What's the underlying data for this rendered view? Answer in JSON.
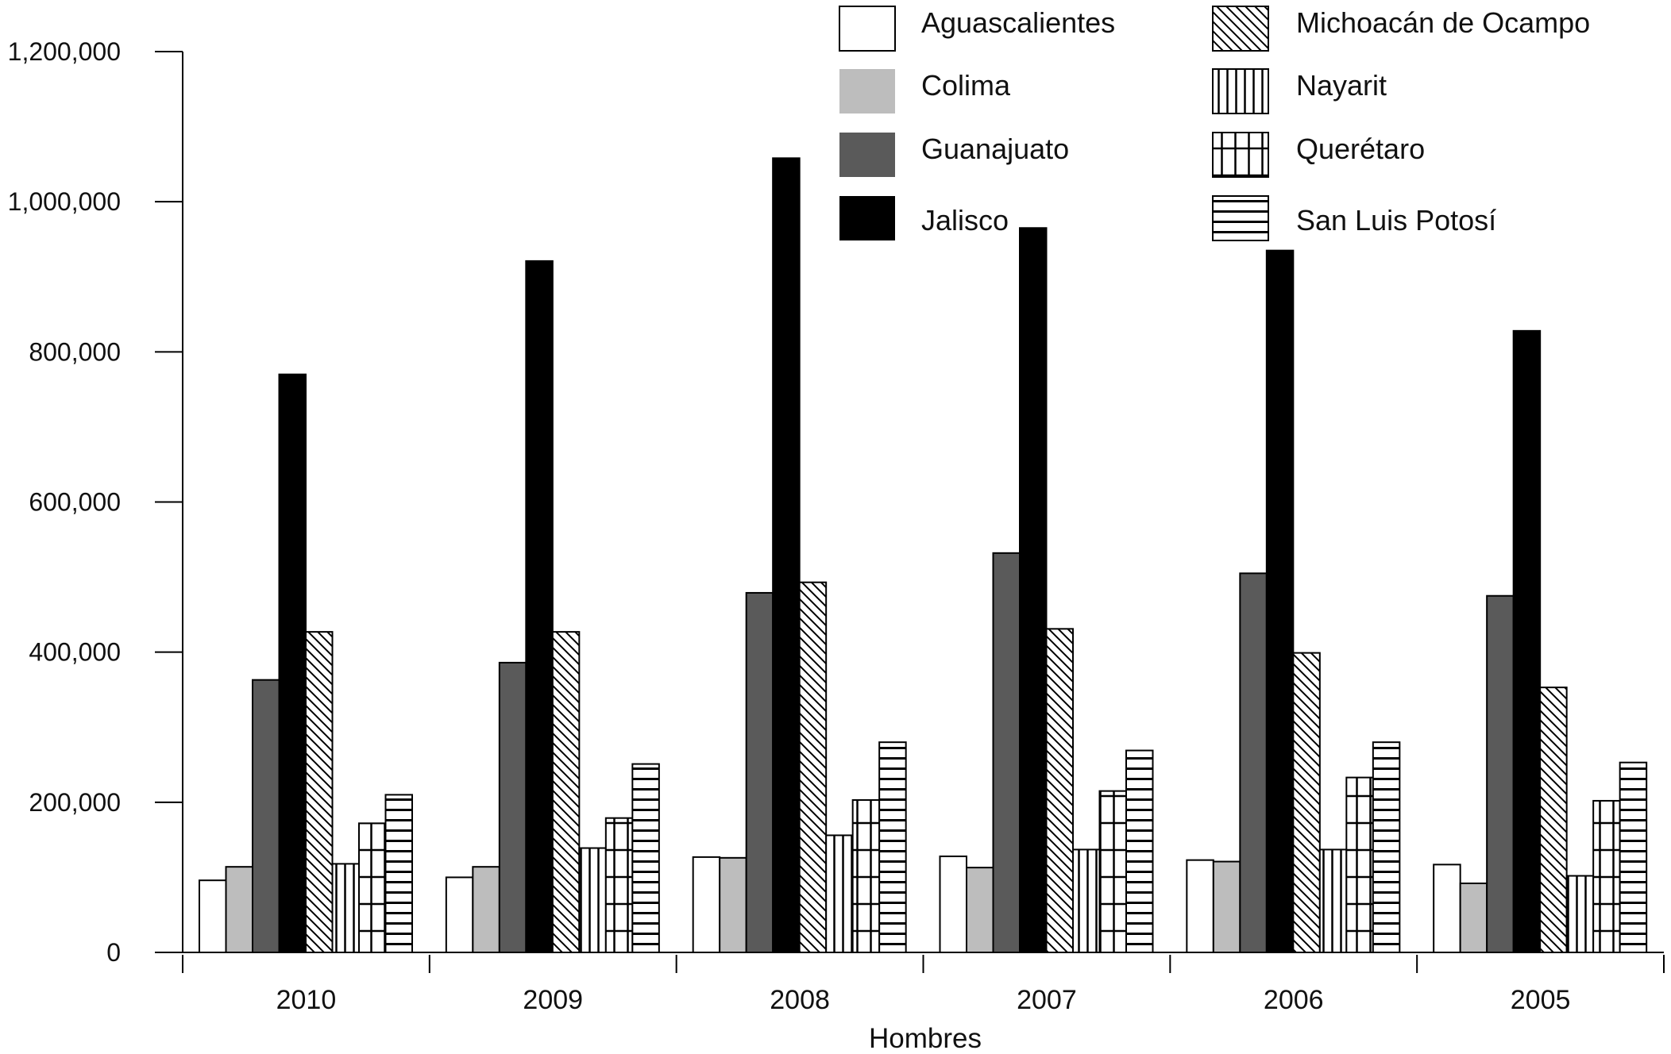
{
  "chart_data": {
    "type": "bar",
    "title": "",
    "xlabel": "Hombres",
    "ylabel": "",
    "ylim": [
      0,
      1200000
    ],
    "yticks": [
      0,
      200000,
      400000,
      600000,
      800000,
      1000000,
      1200000
    ],
    "ytick_labels": [
      "0",
      "200,000",
      "400,000",
      "600,000",
      "800,000",
      "1,000,000",
      "1,200,000"
    ],
    "categories": [
      "2010",
      "2009",
      "2008",
      "2007",
      "2006",
      "2005"
    ],
    "legend_position": "top-right",
    "series": [
      {
        "name": "Aguascalientes",
        "pattern": "white",
        "values": [
          96000,
          100000,
          127000,
          128000,
          123000,
          117000
        ]
      },
      {
        "name": "Colima",
        "pattern": "light-gray",
        "values": [
          114000,
          114000,
          126000,
          113000,
          121000,
          92000
        ]
      },
      {
        "name": "Guanajuato",
        "pattern": "dark-gray",
        "values": [
          363000,
          386000,
          479000,
          532000,
          505000,
          475000
        ]
      },
      {
        "name": "Jalisco",
        "pattern": "black",
        "values": [
          770000,
          921000,
          1058000,
          965000,
          935000,
          828000
        ]
      },
      {
        "name": "Michoacán de Ocampo",
        "pattern": "diagonal",
        "values": [
          427000,
          427000,
          493000,
          431000,
          399000,
          353000
        ]
      },
      {
        "name": "Nayarit",
        "pattern": "vertical",
        "values": [
          118000,
          139000,
          156000,
          137000,
          137000,
          102000
        ]
      },
      {
        "name": "Querétaro",
        "pattern": "grid",
        "values": [
          172000,
          179000,
          203000,
          215000,
          233000,
          202000
        ]
      },
      {
        "name": "San Luis Potosí",
        "pattern": "horizontal",
        "values": [
          210000,
          251000,
          280000,
          269000,
          280000,
          253000
        ]
      }
    ]
  }
}
